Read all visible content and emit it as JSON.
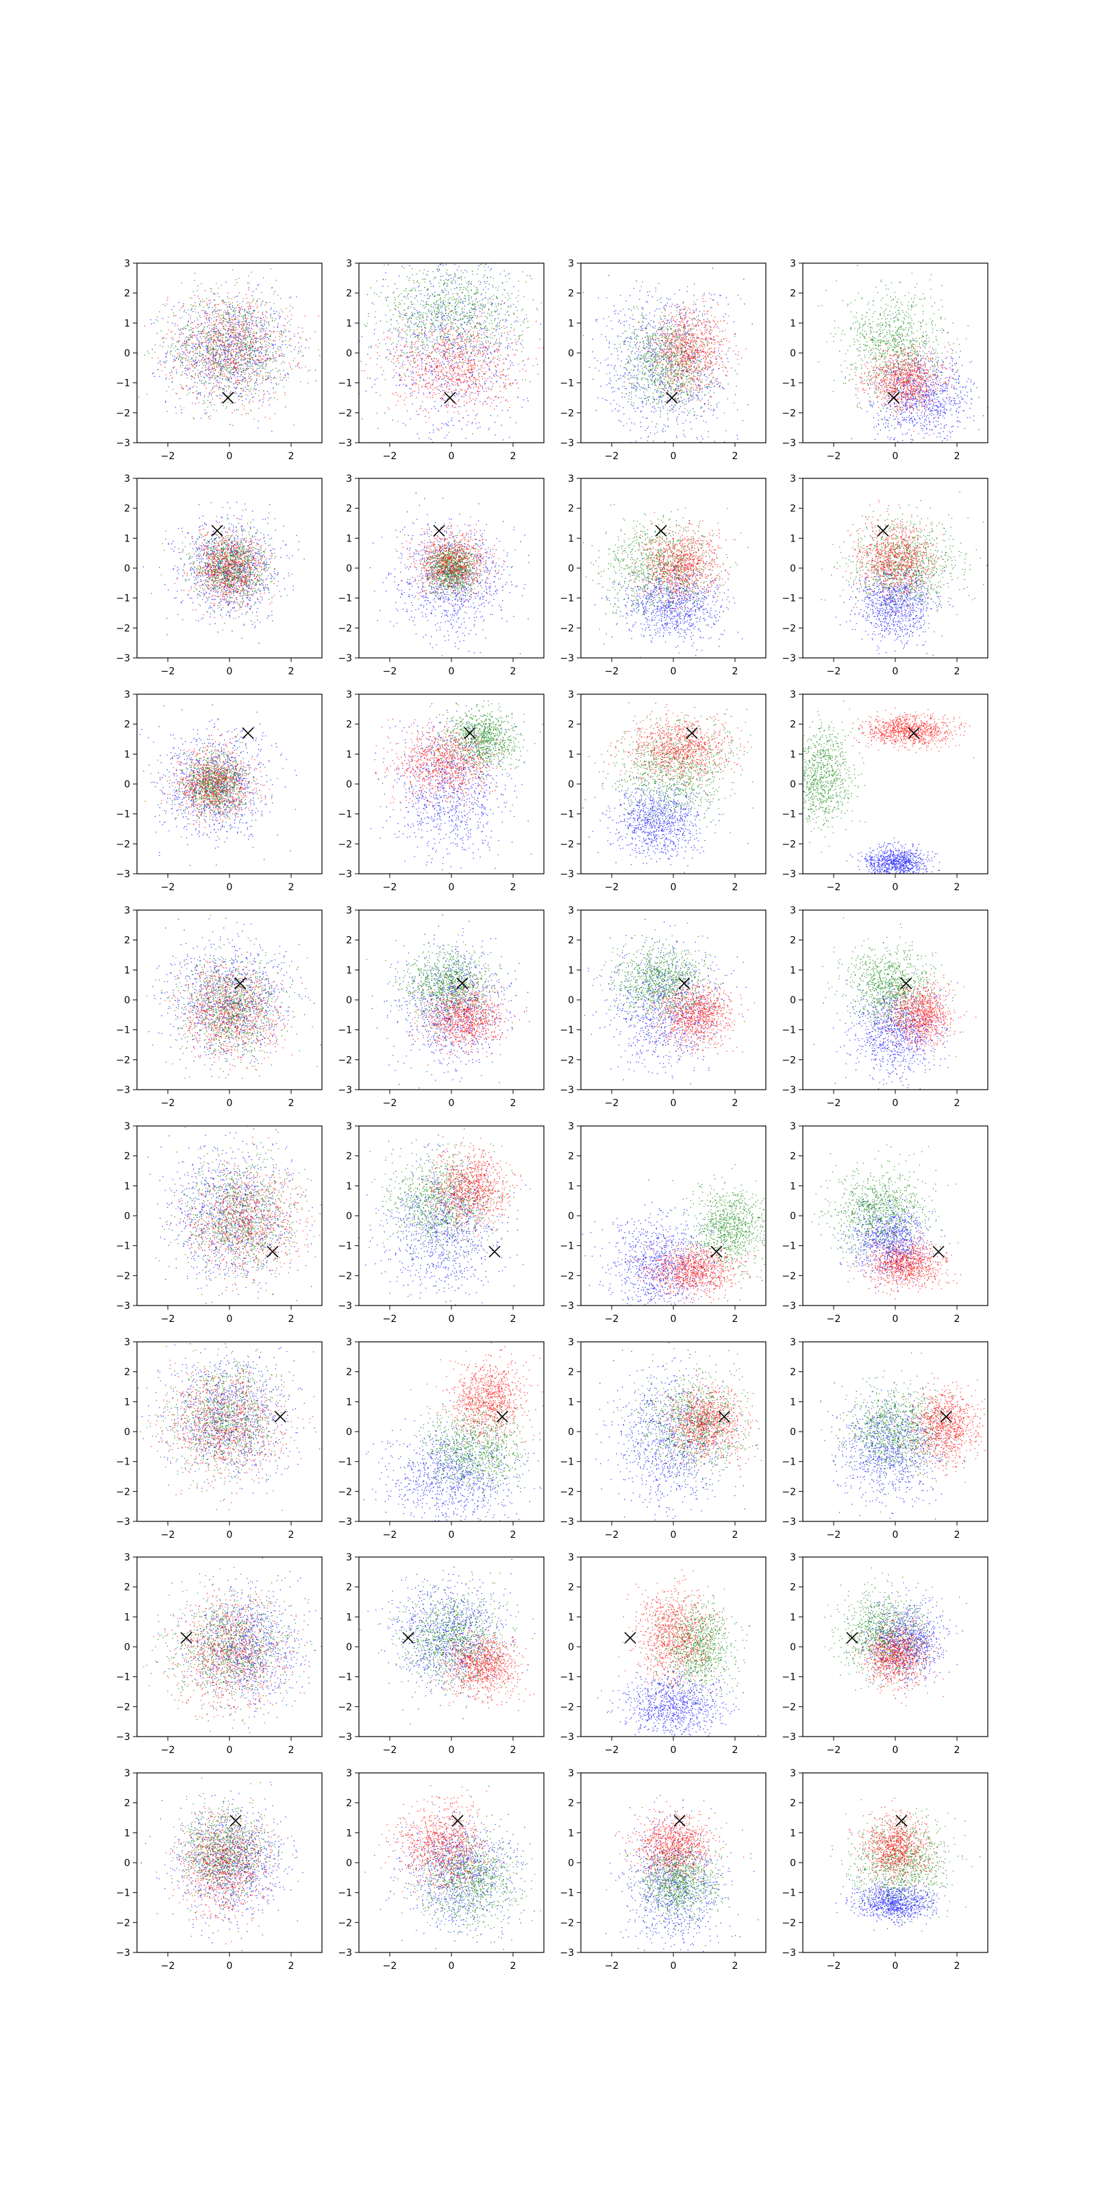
{
  "chart_data": {
    "type": "scatter",
    "grid": false,
    "legend": "none",
    "rows": 8,
    "cols": 4,
    "xlim": [
      -3,
      3
    ],
    "ylim": [
      -3,
      3
    ],
    "xticks": [
      -2,
      0,
      2
    ],
    "xtick_labels": [
      "−2",
      "0",
      "2"
    ],
    "yticks": [
      -3,
      -2,
      -1,
      0,
      1,
      2,
      3
    ],
    "ytick_labels": [
      "−3",
      "−2",
      "−1",
      "0",
      "1",
      "2",
      "3"
    ],
    "series_colors": {
      "blue": "#0000ff",
      "green": "#008000",
      "red": "#ff0000"
    },
    "marker": "x",
    "row_markers": [
      {
        "x": -0.05,
        "y": -1.5
      },
      {
        "x": -0.4,
        "y": 1.25
      },
      {
        "x": 0.6,
        "y": 1.7
      },
      {
        "x": 0.35,
        "y": 0.55
      },
      {
        "x": 1.4,
        "y": -1.2
      },
      {
        "x": 1.65,
        "y": 0.5
      },
      {
        "x": -1.4,
        "y": 0.3
      },
      {
        "x": 0.2,
        "y": 1.4
      }
    ],
    "panels": [
      [
        {
          "blue": {
            "mean": [
              0,
              0.1
            ],
            "sd": [
              1.0,
              0.9
            ]
          },
          "green": {
            "mean": [
              0,
              0.2
            ],
            "sd": [
              1.0,
              0.9
            ]
          },
          "red": {
            "mean": [
              0,
              0.2
            ],
            "sd": [
              1.0,
              0.9
            ]
          }
        },
        {
          "blue": {
            "mean": [
              0,
              0.2
            ],
            "sd": [
              1.2,
              1.5
            ]
          },
          "green": {
            "mean": [
              0,
              1.3
            ],
            "sd": [
              1.2,
              0.8
            ]
          },
          "red": {
            "mean": [
              0,
              -0.4
            ],
            "sd": [
              1.0,
              0.8
            ]
          }
        },
        {
          "blue": {
            "mean": [
              -0.3,
              -0.5
            ],
            "sd": [
              1.1,
              1.4
            ]
          },
          "green": {
            "mean": [
              -0.2,
              -0.3
            ],
            "sd": [
              0.7,
              0.8
            ]
          },
          "red": {
            "mean": [
              0.5,
              0.1
            ],
            "sd": [
              0.6,
              0.7
            ]
          }
        },
        {
          "blue": {
            "mean": [
              0.9,
              -1.5
            ],
            "sd": [
              0.8,
              0.7
            ]
          },
          "green": {
            "mean": [
              0,
              0.3
            ],
            "sd": [
              0.8,
              0.9
            ]
          },
          "red": {
            "mean": [
              0.3,
              -0.9
            ],
            "sd": [
              0.6,
              0.5
            ]
          }
        }
      ],
      [
        {
          "blue": {
            "mean": [
              0,
              0
            ],
            "sd": [
              0.8,
              0.8
            ]
          },
          "green": {
            "mean": [
              0,
              0
            ],
            "sd": [
              0.6,
              0.6
            ]
          },
          "red": {
            "mean": [
              0,
              0
            ],
            "sd": [
              0.6,
              0.6
            ]
          }
        },
        {
          "blue": {
            "mean": [
              0,
              -0.4
            ],
            "sd": [
              0.9,
              0.9
            ]
          },
          "green": {
            "mean": [
              0,
              0
            ],
            "sd": [
              0.4,
              0.4
            ]
          },
          "red": {
            "mean": [
              0,
              0.2
            ],
            "sd": [
              0.6,
              0.5
            ]
          }
        },
        {
          "blue": {
            "mean": [
              -0.1,
              -1.2
            ],
            "sd": [
              0.8,
              0.6
            ]
          },
          "green": {
            "mean": [
              -0.5,
              0
            ],
            "sd": [
              0.9,
              0.8
            ]
          },
          "red": {
            "mean": [
              0.2,
              0.1
            ],
            "sd": [
              0.6,
              0.6
            ]
          }
        },
        {
          "blue": {
            "mean": [
              0,
              -1.2
            ],
            "sd": [
              0.6,
              0.6
            ]
          },
          "green": {
            "mean": [
              0.3,
              0.2
            ],
            "sd": [
              0.9,
              0.7
            ]
          },
          "red": {
            "mean": [
              0,
              0.3
            ],
            "sd": [
              0.6,
              0.6
            ]
          }
        }
      ],
      [
        {
          "blue": {
            "mean": [
              -0.5,
              0
            ],
            "sd": [
              0.9,
              0.9
            ]
          },
          "green": {
            "mean": [
              -0.5,
              0
            ],
            "sd": [
              0.5,
              0.5
            ]
          },
          "red": {
            "mean": [
              -0.5,
              0
            ],
            "sd": [
              0.6,
              0.6
            ]
          }
        },
        {
          "blue": {
            "mean": [
              0,
              -0.3
            ],
            "sd": [
              0.9,
              1.1
            ]
          },
          "green": {
            "mean": [
              1,
              1.5
            ],
            "sd": [
              0.6,
              0.5
            ]
          },
          "red": {
            "mean": [
              -0.3,
              0.7
            ],
            "sd": [
              0.8,
              0.6
            ]
          }
        },
        {
          "blue": {
            "mean": [
              -0.5,
              -1.2
            ],
            "sd": [
              0.7,
              0.6
            ]
          },
          "green": {
            "mean": [
              0,
              0.4
            ],
            "sd": [
              1.0,
              0.8
            ]
          },
          "red": {
            "mean": [
              0.2,
              1.2
            ],
            "sd": [
              0.8,
              0.5
            ]
          }
        },
        {
          "blue": {
            "mean": [
              0,
              -2.6
            ],
            "sd": [
              0.5,
              0.25
            ]
          },
          "green": {
            "mean": [
              -2.4,
              0.3
            ],
            "sd": [
              0.5,
              0.8
            ]
          },
          "red": {
            "mean": [
              0.4,
              1.8
            ],
            "sd": [
              0.7,
              0.25
            ]
          }
        }
      ],
      [
        {
          "blue": {
            "mean": [
              0,
              0
            ],
            "sd": [
              1.0,
              0.9
            ]
          },
          "green": {
            "mean": [
              0,
              -0.3
            ],
            "sd": [
              0.8,
              0.8
            ]
          },
          "red": {
            "mean": [
              0,
              -0.4
            ],
            "sd": [
              0.8,
              0.8
            ]
          }
        },
        {
          "blue": {
            "mean": [
              0,
              -0.3
            ],
            "sd": [
              0.9,
              1.0
            ]
          },
          "green": {
            "mean": [
              -0.1,
              0.5
            ],
            "sd": [
              0.7,
              0.6
            ]
          },
          "red": {
            "mean": [
              0.4,
              -0.6
            ],
            "sd": [
              0.6,
              0.5
            ]
          }
        },
        {
          "blue": {
            "mean": [
              -0.3,
              -0.3
            ],
            "sd": [
              0.9,
              1.0
            ]
          },
          "green": {
            "mean": [
              -0.4,
              0.6
            ],
            "sd": [
              0.7,
              0.6
            ]
          },
          "red": {
            "mean": [
              0.7,
              -0.5
            ],
            "sd": [
              0.6,
              0.5
            ]
          }
        },
        {
          "blue": {
            "mean": [
              0,
              -1.1
            ],
            "sd": [
              0.7,
              0.7
            ]
          },
          "green": {
            "mean": [
              -0.2,
              0.5
            ],
            "sd": [
              0.7,
              0.6
            ]
          },
          "red": {
            "mean": [
              0.8,
              -0.5
            ],
            "sd": [
              0.5,
              0.5
            ]
          }
        }
      ],
      [
        {
          "blue": {
            "mean": [
              0,
              0
            ],
            "sd": [
              1.0,
              1.1
            ]
          },
          "green": {
            "mean": [
              0.3,
              0
            ],
            "sd": [
              0.9,
              0.9
            ]
          },
          "red": {
            "mean": [
              0.5,
              -0.2
            ],
            "sd": [
              0.9,
              0.9
            ]
          }
        },
        {
          "blue": {
            "mean": [
              -0.3,
              -0.5
            ],
            "sd": [
              0.9,
              1.1
            ]
          },
          "green": {
            "mean": [
              -0.4,
              0.5
            ],
            "sd": [
              0.8,
              0.8
            ]
          },
          "red": {
            "mean": [
              0.6,
              0.9
            ],
            "sd": [
              0.6,
              0.6
            ]
          }
        },
        {
          "blue": {
            "mean": [
              -0.5,
              -1.6
            ],
            "sd": [
              0.8,
              0.8
            ]
          },
          "green": {
            "mean": [
              1.8,
              -0.4
            ],
            "sd": [
              0.6,
              0.7
            ]
          },
          "red": {
            "mean": [
              0.6,
              -1.8
            ],
            "sd": [
              0.7,
              0.4
            ]
          }
        },
        {
          "blue": {
            "mean": [
              -0.2,
              -0.8
            ],
            "sd": [
              0.6,
              0.6
            ]
          },
          "green": {
            "mean": [
              -0.5,
              0.2
            ],
            "sd": [
              0.8,
              0.7
            ]
          },
          "red": {
            "mean": [
              0.3,
              -1.6
            ],
            "sd": [
              0.6,
              0.4
            ]
          }
        }
      ],
      [
        {
          "blue": {
            "mean": [
              0,
              0.5
            ],
            "sd": [
              1.0,
              1.0
            ]
          },
          "green": {
            "mean": [
              -0.2,
              0.5
            ],
            "sd": [
              0.9,
              0.9
            ]
          },
          "red": {
            "mean": [
              -0.2,
              0.3
            ],
            "sd": [
              0.9,
              0.9
            ]
          }
        },
        {
          "blue": {
            "mean": [
              0,
              -1.5
            ],
            "sd": [
              1.0,
              0.8
            ]
          },
          "green": {
            "mean": [
              0.7,
              -0.6
            ],
            "sd": [
              0.8,
              0.7
            ]
          },
          "red": {
            "mean": [
              1.2,
              1.1
            ],
            "sd": [
              0.6,
              0.6
            ]
          }
        },
        {
          "blue": {
            "mean": [
              -0.2,
              -0.3
            ],
            "sd": [
              0.9,
              1.1
            ]
          },
          "green": {
            "mean": [
              0.6,
              0.3
            ],
            "sd": [
              0.8,
              0.8
            ]
          },
          "red": {
            "mean": [
              1.1,
              0.3
            ],
            "sd": [
              0.6,
              0.6
            ]
          }
        },
        {
          "blue": {
            "mean": [
              -0.2,
              -0.6
            ],
            "sd": [
              0.8,
              0.8
            ]
          },
          "green": {
            "mean": [
              0,
              0.1
            ],
            "sd": [
              0.8,
              0.7
            ]
          },
          "red": {
            "mean": [
              1.6,
              0.2
            ],
            "sd": [
              0.5,
              0.6
            ]
          }
        }
      ],
      [
        {
          "blue": {
            "mean": [
              0.5,
              0
            ],
            "sd": [
              0.9,
              0.9
            ]
          },
          "green": {
            "mean": [
              0,
              0
            ],
            "sd": [
              0.9,
              0.9
            ]
          },
          "red": {
            "mean": [
              0,
              -0.2
            ],
            "sd": [
              0.9,
              0.9
            ]
          }
        },
        {
          "blue": {
            "mean": [
              -0.1,
              0.4
            ],
            "sd": [
              0.9,
              0.9
            ]
          },
          "green": {
            "mean": [
              0,
              0.3
            ],
            "sd": [
              0.8,
              0.8
            ]
          },
          "red": {
            "mean": [
              1.0,
              -0.6
            ],
            "sd": [
              0.6,
              0.5
            ]
          }
        },
        {
          "blue": {
            "mean": [
              0,
              -1.9
            ],
            "sd": [
              0.8,
              0.5
            ]
          },
          "green": {
            "mean": [
              0.8,
              0
            ],
            "sd": [
              0.6,
              0.7
            ]
          },
          "red": {
            "mean": [
              0,
              0.4
            ],
            "sd": [
              0.6,
              0.8
            ]
          }
        },
        {
          "blue": {
            "mean": [
              0.3,
              0.2
            ],
            "sd": [
              0.6,
              0.6
            ]
          },
          "green": {
            "mean": [
              -0.4,
              0.5
            ],
            "sd": [
              0.7,
              0.7
            ]
          },
          "red": {
            "mean": [
              0,
              -0.3
            ],
            "sd": [
              0.5,
              0.5
            ]
          }
        }
      ],
      [
        {
          "blue": {
            "mean": [
              0,
              0
            ],
            "sd": [
              0.9,
              0.9
            ]
          },
          "green": {
            "mean": [
              -0.2,
              0.4
            ],
            "sd": [
              0.7,
              0.7
            ]
          },
          "red": {
            "mean": [
              -0.2,
              -0.1
            ],
            "sd": [
              0.7,
              0.8
            ]
          }
        },
        {
          "blue": {
            "mean": [
              0.3,
              -0.3
            ],
            "sd": [
              0.9,
              0.9
            ]
          },
          "green": {
            "mean": [
              0.6,
              -0.6
            ],
            "sd": [
              0.8,
              0.7
            ]
          },
          "red": {
            "mean": [
              -0.3,
              0.6
            ],
            "sd": [
              0.7,
              0.7
            ]
          }
        },
        {
          "blue": {
            "mean": [
              0,
              -0.8
            ],
            "sd": [
              0.8,
              1.0
            ]
          },
          "green": {
            "mean": [
              0.2,
              -0.6
            ],
            "sd": [
              0.6,
              0.6
            ]
          },
          "red": {
            "mean": [
              0,
              0.6
            ],
            "sd": [
              0.6,
              0.5
            ]
          }
        },
        {
          "blue": {
            "mean": [
              0,
              -1.3
            ],
            "sd": [
              0.6,
              0.3
            ]
          },
          "green": {
            "mean": [
              0.2,
              0
            ],
            "sd": [
              0.8,
              0.7
            ]
          },
          "red": {
            "mean": [
              0,
              0.5
            ],
            "sd": [
              0.5,
              0.5
            ]
          }
        }
      ]
    ]
  }
}
